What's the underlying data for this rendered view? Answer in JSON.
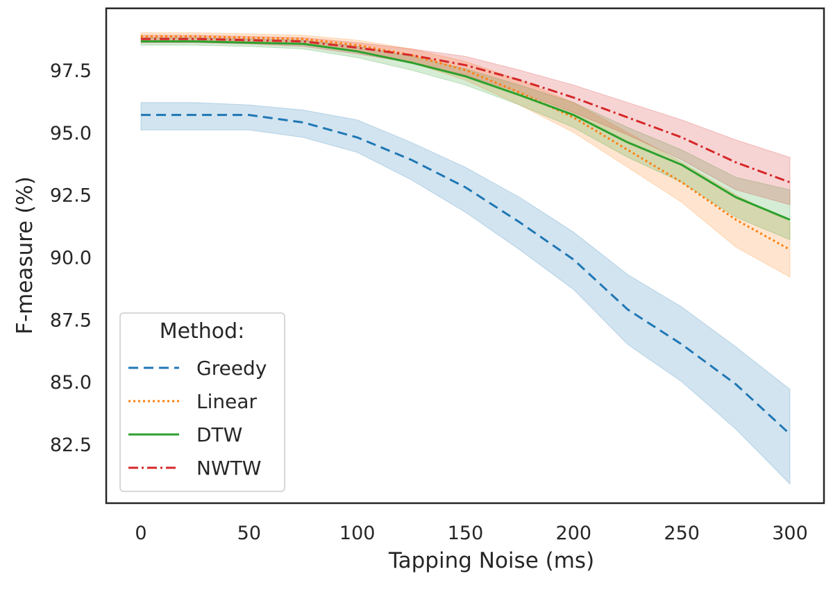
{
  "chart_data": {
    "type": "line",
    "title": "",
    "xlabel": "Tapping Noise (ms)",
    "ylabel": "F-measure (%)",
    "xlim": [
      -15,
      317
    ],
    "ylim": [
      80.2,
      99.7
    ],
    "xticks": [
      0,
      50,
      100,
      150,
      200,
      250,
      300
    ],
    "xtick_labels": [
      "0",
      "50",
      "100",
      "150",
      "200",
      "250",
      "300"
    ],
    "yticks": [
      82.5,
      85.0,
      87.5,
      90.0,
      92.5,
      95.0,
      97.5
    ],
    "ytick_labels": [
      "82.5",
      "85.0",
      "87.5",
      "90.0",
      "92.5",
      "95.0",
      "97.5"
    ],
    "grid": false,
    "legend": {
      "title": "Method:",
      "placement": "bottom-left"
    },
    "x": [
      0,
      25,
      50,
      75,
      100,
      125,
      150,
      175,
      200,
      225,
      250,
      275,
      300
    ],
    "series": [
      {
        "name": "Greedy",
        "color": "#1f77b4",
        "dash": "dashed",
        "values": [
          95.7,
          95.7,
          95.7,
          95.4,
          94.8,
          93.9,
          92.8,
          91.4,
          89.9,
          87.9,
          86.5,
          84.9,
          82.9
        ],
        "lower": [
          95.1,
          95.1,
          95.1,
          94.8,
          94.2,
          93.1,
          91.8,
          90.3,
          88.7,
          86.5,
          85.0,
          83.1,
          80.9
        ],
        "upper": [
          96.2,
          96.2,
          96.1,
          95.9,
          95.5,
          94.6,
          93.6,
          92.4,
          91.0,
          89.3,
          88.0,
          86.4,
          84.7
        ]
      },
      {
        "name": "Linear",
        "color": "#ff7f0e",
        "dash": "dotted",
        "values": [
          98.85,
          98.85,
          98.8,
          98.75,
          98.5,
          98.1,
          97.5,
          96.6,
          95.6,
          94.3,
          93.0,
          91.5,
          90.3
        ],
        "lower": [
          98.65,
          98.65,
          98.6,
          98.55,
          98.25,
          97.8,
          97.1,
          96.1,
          95.0,
          93.6,
          92.2,
          90.4,
          89.2
        ],
        "upper": [
          99.0,
          99.0,
          98.95,
          98.9,
          98.7,
          98.35,
          97.85,
          97.1,
          96.2,
          95.0,
          93.8,
          92.5,
          91.4
        ]
      },
      {
        "name": "DTW",
        "color": "#2ca02c",
        "dash": "solid",
        "values": [
          98.65,
          98.65,
          98.6,
          98.55,
          98.25,
          97.8,
          97.25,
          96.5,
          95.7,
          94.6,
          93.7,
          92.4,
          91.5
        ],
        "lower": [
          98.5,
          98.5,
          98.45,
          98.35,
          98.0,
          97.5,
          96.9,
          96.1,
          95.2,
          94.0,
          93.0,
          91.6,
          90.7
        ],
        "upper": [
          98.8,
          98.8,
          98.75,
          98.7,
          98.45,
          98.05,
          97.55,
          96.9,
          96.2,
          95.2,
          94.3,
          93.2,
          92.7
        ]
      },
      {
        "name": "NWTW",
        "color": "#d62728",
        "dash": "dashdot",
        "values": [
          98.75,
          98.75,
          98.7,
          98.65,
          98.4,
          98.1,
          97.7,
          97.1,
          96.4,
          95.6,
          94.8,
          93.8,
          93.0
        ],
        "lower": [
          98.6,
          98.6,
          98.55,
          98.45,
          98.15,
          97.8,
          97.3,
          96.6,
          95.8,
          94.9,
          93.9,
          92.7,
          92.1
        ],
        "upper": [
          98.9,
          98.9,
          98.85,
          98.8,
          98.6,
          98.35,
          98.05,
          97.5,
          96.9,
          96.2,
          95.5,
          94.7,
          94.0
        ]
      }
    ]
  }
}
